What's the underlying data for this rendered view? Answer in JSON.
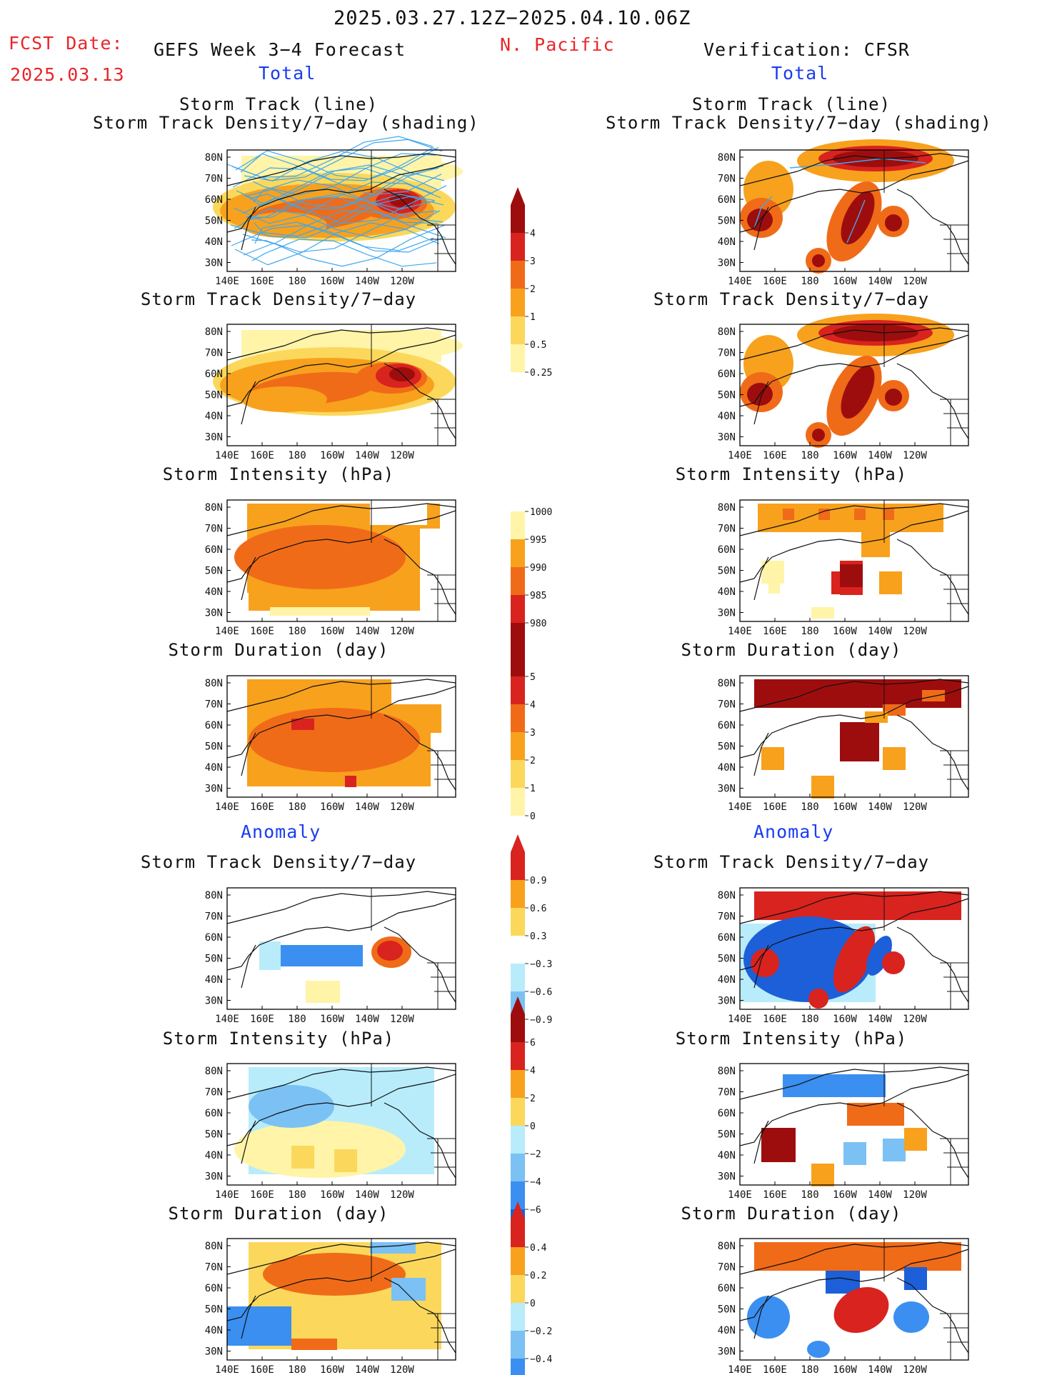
{
  "header": {
    "period": "2025.03.27.12Z−2025.04.10.06Z",
    "fcst_label": "FCST Date:",
    "fcst_date": "2025.03.13",
    "forecast_title": "GEFS Week 3−4 Forecast",
    "region": "N. Pacific",
    "verification_title": "Verification: CFSR",
    "total_left": "Total",
    "total_right": "Total",
    "anomaly_left": "Anomaly",
    "anomaly_right": "Anomaly"
  },
  "panel_titles": {
    "track_line": "Storm Track (line)",
    "track_shading": "Storm Track Density/7−day (shading)",
    "density": "Storm Track Density/7−day",
    "intensity": "Storm Intensity (hPa)",
    "duration": "Storm Duration (day)"
  },
  "axes": {
    "lat_labels": [
      "80N",
      "70N",
      "60N",
      "50N",
      "40N",
      "30N"
    ],
    "lon_labels": [
      "140E",
      "160E",
      "180",
      "160W",
      "140W",
      "120W"
    ]
  },
  "colorbars": {
    "density": [
      "4",
      "3",
      "2",
      "1",
      "0.5",
      "0.25"
    ],
    "intensity": [
      "1000",
      "995",
      "990",
      "985",
      "980"
    ],
    "duration": [
      "5",
      "4",
      "3",
      "2",
      "1",
      "0"
    ],
    "density_anom": [
      "0.9",
      "0.6",
      "0.3",
      "−0.3",
      "−0.6",
      "−0.9"
    ],
    "intensity_anom": [
      "6",
      "4",
      "2",
      "0",
      "−2",
      "−4",
      "−6"
    ],
    "duration_anom": [
      "0.4",
      "0.2",
      "0",
      "−0.2",
      "−0.4"
    ]
  },
  "colors": {
    "warm": [
      "#fff4a8",
      "#fbd85c",
      "#f8a11d",
      "#f06b18",
      "#d9231e",
      "#9e0d0d"
    ],
    "cool": [
      "#b8ecfb",
      "#7bc1f4",
      "#3b8ff0",
      "#1c5fd8"
    ],
    "track_line": "#3ea7ee"
  }
}
